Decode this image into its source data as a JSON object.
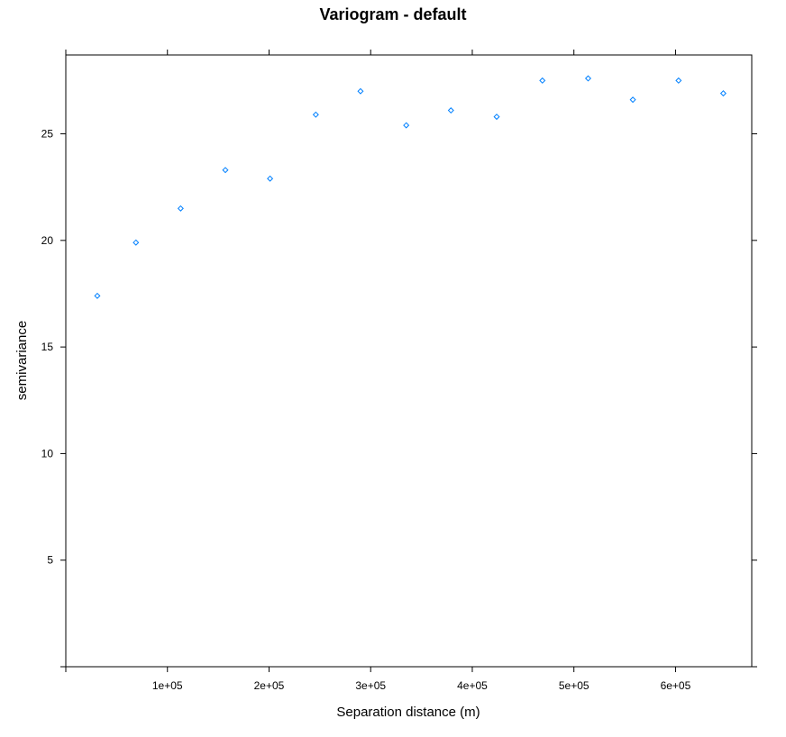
{
  "chart_data": {
    "type": "scatter",
    "title": "Variogram - default",
    "xlabel": "Separation distance (m)",
    "ylabel": "semivariance",
    "xlim": [
      0,
      675000
    ],
    "ylim": [
      0,
      28.7
    ],
    "x_ticks": [
      {
        "value": 100000,
        "label": "1e+05"
      },
      {
        "value": 200000,
        "label": "2e+05"
      },
      {
        "value": 300000,
        "label": "3e+05"
      },
      {
        "value": 400000,
        "label": "4e+05"
      },
      {
        "value": 500000,
        "label": "5e+05"
      },
      {
        "value": 600000,
        "label": "6e+05"
      }
    ],
    "y_ticks": [
      {
        "value": 5,
        "label": "5"
      },
      {
        "value": 10,
        "label": "10"
      },
      {
        "value": 15,
        "label": "15"
      },
      {
        "value": 20,
        "label": "20"
      },
      {
        "value": 25,
        "label": "25"
      }
    ],
    "grid": false,
    "marker": "diamond",
    "marker_color": "#0080ff",
    "x": [
      31000,
      69000,
      113000,
      157000,
      201000,
      246000,
      290000,
      335000,
      379000,
      424000,
      469000,
      514000,
      558000,
      603000,
      647000
    ],
    "y": [
      17.4,
      19.9,
      21.5,
      23.3,
      22.9,
      25.9,
      27.0,
      25.4,
      26.1,
      25.8,
      27.5,
      27.6,
      26.6,
      27.5,
      26.9
    ]
  }
}
